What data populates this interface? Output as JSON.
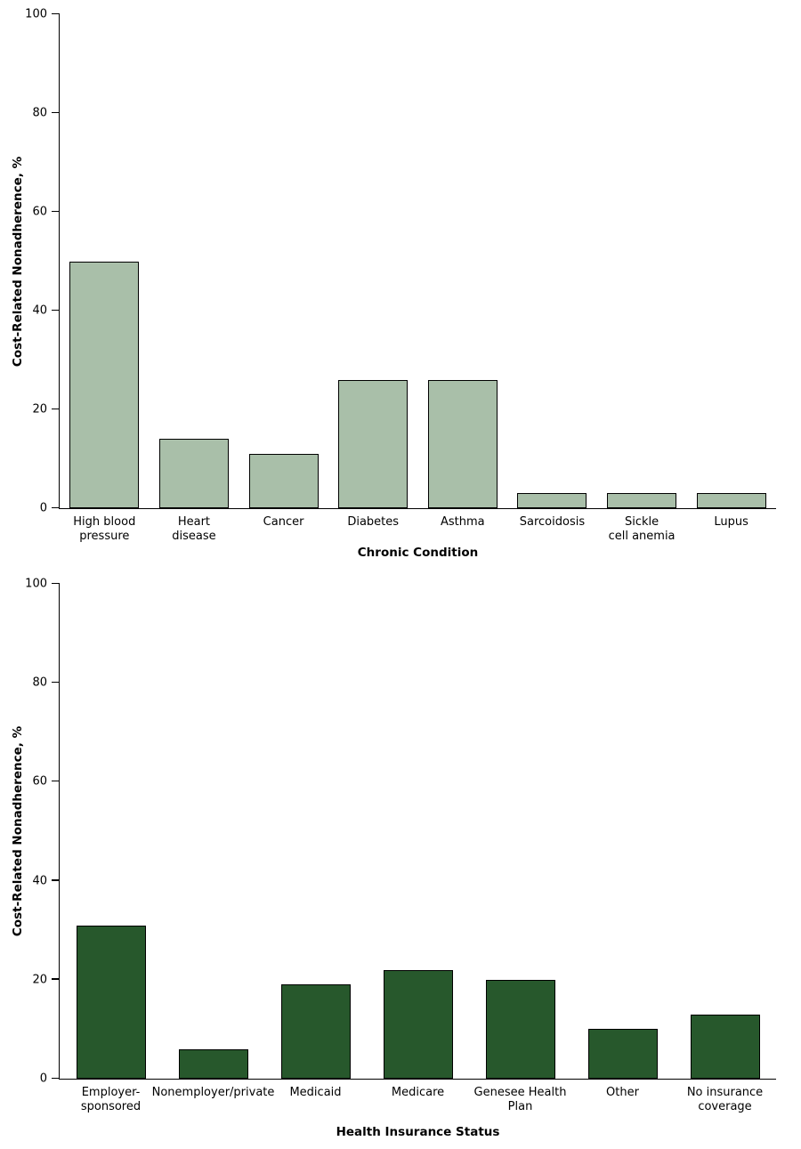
{
  "page": {
    "background": "#ffffff",
    "text_color": "#000000"
  },
  "chart_data": [
    {
      "id": "chronic-condition",
      "type": "bar",
      "title": "",
      "xlabel": "Chronic Condition",
      "ylabel": "Cost-Related Nonadherence, %",
      "categories": [
        "High blood\npressure",
        "Heart\ndisease",
        "Cancer",
        "Diabetes",
        "Asthma",
        "Sarcoidosis",
        "Sickle\ncell anemia",
        "Lupus"
      ],
      "values": [
        50,
        14,
        11,
        26,
        26,
        3,
        3,
        3
      ],
      "ylim": [
        0,
        100
      ],
      "yticks": [
        0,
        20,
        40,
        60,
        80,
        100
      ],
      "bar_color": "#a9bfa9",
      "bar_border_color": "#000000",
      "axis_color": "#000000",
      "grid": false,
      "legend": null
    },
    {
      "id": "insurance-status",
      "type": "bar",
      "title": "",
      "xlabel": "Health Insurance Status",
      "ylabel": "Cost-Related Nonadherence, %",
      "categories": [
        "Employer-\nsponsored",
        "Nonemployer/private",
        "Medicaid",
        "Medicare",
        "Genesee Health\nPlan",
        "Other",
        "No insurance\ncoverage"
      ],
      "values": [
        31,
        6,
        19,
        22,
        20,
        10,
        13
      ],
      "ylim": [
        0,
        100
      ],
      "yticks": [
        0,
        20,
        40,
        60,
        80,
        100
      ],
      "bar_color": "#27582c",
      "bar_border_color": "#000000",
      "axis_color": "#000000",
      "grid": false,
      "legend": null
    }
  ]
}
